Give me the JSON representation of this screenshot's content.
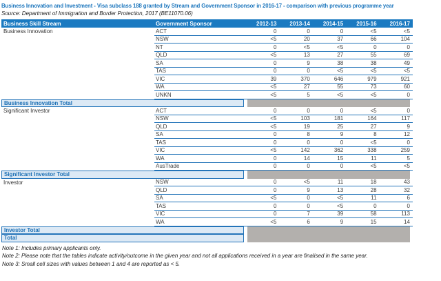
{
  "title": "Business Innovation and Investment - Visa subclass 188 granted by Stream and Government Sponsor in 2016-17 - comparison with previous programme year",
  "source": "Source: Department of Immigration and Border Protection, 2017 (BE11070.06)",
  "table": {
    "columns": [
      "Business Skill Stream",
      "Government Sponsor",
      "2012-13",
      "2013-14",
      "2014-15",
      "2015-16",
      "2016-17"
    ],
    "sections": [
      {
        "stream": "Business Innovation",
        "total_label": "Business Innovation Total",
        "rows": [
          {
            "sponsor": "ACT",
            "values": [
              "0",
              "0",
              "0",
              "<5",
              "<5"
            ]
          },
          {
            "sponsor": "NSW",
            "values": [
              "<5",
              "20",
              "37",
              "66",
              "104"
            ]
          },
          {
            "sponsor": "NT",
            "values": [
              "0",
              "<5",
              "<5",
              "0",
              "0"
            ]
          },
          {
            "sponsor": "QLD",
            "values": [
              "<5",
              "13",
              "27",
              "55",
              "69"
            ]
          },
          {
            "sponsor": "SA",
            "values": [
              "0",
              "9",
              "38",
              "38",
              "49"
            ]
          },
          {
            "sponsor": "TAS",
            "values": [
              "0",
              "0",
              "<5",
              "<5",
              "<5"
            ]
          },
          {
            "sponsor": "VIC",
            "values": [
              "39",
              "370",
              "646",
              "979",
              "921"
            ]
          },
          {
            "sponsor": "WA",
            "values": [
              "<5",
              "27",
              "55",
              "73",
              "60"
            ]
          },
          {
            "sponsor": "UNKN",
            "values": [
              "<5",
              "5",
              "<5",
              "<5",
              "0"
            ]
          }
        ]
      },
      {
        "stream": "Significant Investor",
        "total_label": "Significant Investor Total",
        "rows": [
          {
            "sponsor": "ACT",
            "values": [
              "0",
              "0",
              "0",
              "<5",
              "0"
            ]
          },
          {
            "sponsor": "NSW",
            "values": [
              "<5",
              "103",
              "181",
              "164",
              "117"
            ]
          },
          {
            "sponsor": "QLD",
            "values": [
              "<5",
              "19",
              "25",
              "27",
              "9"
            ]
          },
          {
            "sponsor": "SA",
            "values": [
              "0",
              "8",
              "9",
              "8",
              "12"
            ]
          },
          {
            "sponsor": "TAS",
            "values": [
              "0",
              "0",
              "0",
              "<5",
              "0"
            ]
          },
          {
            "sponsor": "VIC",
            "values": [
              "<5",
              "142",
              "362",
              "338",
              "259"
            ]
          },
          {
            "sponsor": "WA",
            "values": [
              "0",
              "14",
              "15",
              "11",
              "5"
            ]
          },
          {
            "sponsor": "AusTrade",
            "values": [
              "0",
              "0",
              "0",
              "<5",
              "<5"
            ]
          }
        ]
      },
      {
        "stream": "Investor",
        "total_label": "Investor Total",
        "rows": [
          {
            "sponsor": "NSW",
            "values": [
              "0",
              "<5",
              "11",
              "18",
              "43"
            ]
          },
          {
            "sponsor": "QLD",
            "values": [
              "0",
              "9",
              "13",
              "28",
              "32"
            ]
          },
          {
            "sponsor": "SA",
            "values": [
              "<5",
              "0",
              "<5",
              "11",
              "6"
            ]
          },
          {
            "sponsor": "TAS",
            "values": [
              "0",
              "0",
              "<5",
              "0",
              "0"
            ]
          },
          {
            "sponsor": "VIC",
            "values": [
              "0",
              "7",
              "39",
              "58",
              "113"
            ]
          },
          {
            "sponsor": "WA",
            "values": [
              "<5",
              "6",
              "9",
              "15",
              "14"
            ]
          }
        ]
      }
    ],
    "grand_total_label": "Total"
  },
  "notes": [
    "Note 1: Includes primary applicants only.",
    "Note 2: Please note that the tables indicate activity/outcome in the given year and not all applications received in a year are finalised in the same year.",
    "Note 3: Small cell sizes with values between 1 and 4 are reported as < 5."
  ],
  "colors": {
    "header_bg": "#1b7ac1",
    "title_text": "#1c76bd",
    "row_line": "#2374b9",
    "total_label_bg": "#dce9f5",
    "total_label_text": "#1c6fb4",
    "total_data_bg": "#b3b0ad"
  }
}
